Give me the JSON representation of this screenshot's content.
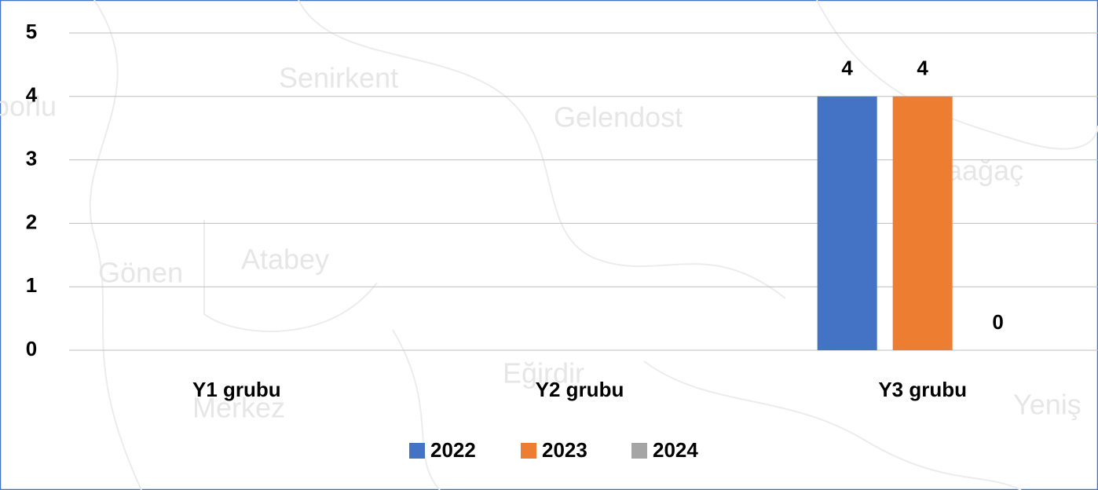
{
  "chart_data": {
    "type": "bar",
    "categories": [
      "Y1 grubu",
      "Y2 grubu",
      "Y3 grubu"
    ],
    "series": [
      {
        "name": "2022",
        "color": "#4472c4",
        "values": [
          null,
          null,
          4
        ]
      },
      {
        "name": "2023",
        "color": "#ed7d31",
        "values": [
          null,
          null,
          4
        ]
      },
      {
        "name": "2024",
        "color": "#a5a5a5",
        "values": [
          null,
          null,
          0
        ]
      }
    ],
    "ylim": [
      0,
      5
    ],
    "yticks": [
      0,
      1,
      2,
      3,
      4,
      5
    ],
    "grid": true,
    "legend": "bottom"
  },
  "background": {
    "labels": [
      "borlu",
      "Senirkent",
      "Gelendost",
      "aağaç",
      "Gönen",
      "Atabey",
      "Eğirdir",
      "Merkez",
      "Yeniş"
    ]
  }
}
